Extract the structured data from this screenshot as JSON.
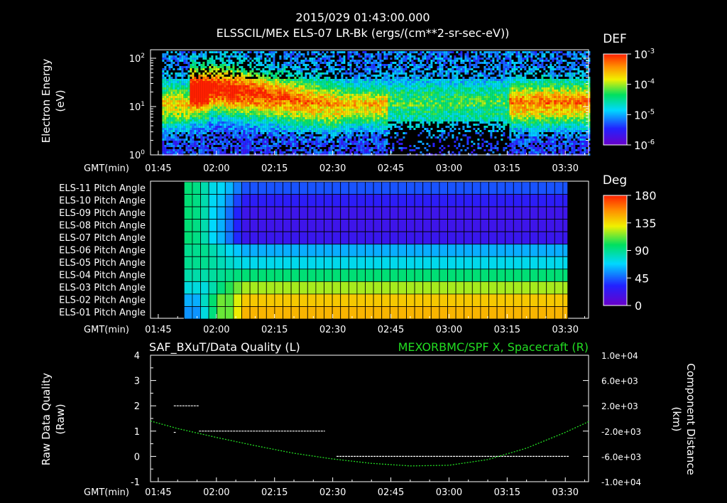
{
  "header": {
    "timestamp": "2015/029 01:43:00.000",
    "subtitle": "ELSSCIL/MEx ELS-07 LR-Bk  (ergs/(cm**2-sr-sec-eV))"
  },
  "time_axis": {
    "label": "GMT(min)",
    "ticks": [
      "01:45",
      "02:00",
      "02:15",
      "02:30",
      "02:45",
      "03:00",
      "03:15",
      "03:30"
    ],
    "range_min": [
      103,
      216
    ],
    "tick_minutes": [
      105,
      120,
      135,
      150,
      165,
      180,
      195,
      210
    ]
  },
  "chart_data": [
    {
      "type": "heatmap",
      "name": "energy-spectrogram",
      "ylabel": "Electron Energy",
      "yunit": "(eV)",
      "yscale": "log",
      "ylim": [
        1,
        150
      ],
      "y_ticks": [
        "10^0",
        "10^1",
        "10^2"
      ],
      "data_start_min": 106,
      "colorbar": {
        "title": "DEF",
        "ticks": [
          "10^-3",
          "10^-4",
          "10^-5",
          "10^-6"
        ]
      }
    },
    {
      "type": "heatmap",
      "name": "pitch-angle",
      "rows": [
        "ELS-11 Pitch Angle",
        "ELS-10 Pitch Angle",
        "ELS-09 Pitch Angle",
        "ELS-08 Pitch Angle",
        "ELS-07 Pitch Angle",
        "ELS-06 Pitch Angle",
        "ELS-05 Pitch Angle",
        "ELS-04 Pitch Angle",
        "ELS-03 Pitch Angle",
        "ELS-02 Pitch Angle",
        "ELS-01 Pitch Angle"
      ],
      "data_range_min": [
        108,
        211
      ],
      "colorbar": {
        "title": "Deg",
        "ticks": [
          "180",
          "135",
          "90",
          "45",
          "0"
        ],
        "range": [
          0,
          180
        ]
      }
    },
    {
      "type": "line",
      "name": "data-quality-and-position",
      "left_title": "SAF_BXuT/Data Quality (L)",
      "right_title": "MEXORBMC/SPF X, Spacecraft (R)",
      "left_color": "#ffffff",
      "right_color": "#22dd22",
      "ylabel_left": "Raw Data Quality",
      "ylabel_left_unit": "(Raw)",
      "ylim_left": [
        -1,
        4
      ],
      "y_ticks_left": [
        "4",
        "3",
        "2",
        "1",
        "0",
        "-1"
      ],
      "ylabel_right": "Component Distance",
      "ylabel_right_unit": "(km)",
      "ylim_right": [
        -10000,
        10000
      ],
      "y_ticks_right": [
        "1.0e+04",
        "6.0e+03",
        "2.0e+03",
        "-2.0e+03",
        "-6.0e+03",
        "-1.0e+04"
      ],
      "quality_segments": [
        {
          "t0": 109,
          "t1": 109.5,
          "value": 0.95
        },
        {
          "t0": 109,
          "t1": 115.5,
          "value": 2
        },
        {
          "t0": 115.5,
          "t1": 133,
          "value": 1
        },
        {
          "t0": 133,
          "t1": 148,
          "value": 1
        },
        {
          "t0": 151,
          "t1": 211,
          "value": 0
        }
      ],
      "position_series": {
        "x": [
          103,
          110,
          120,
          130,
          140,
          150,
          160,
          170,
          180,
          190,
          200,
          210,
          216
        ],
        "y": [
          -400,
          -1600,
          -3000,
          -4300,
          -5500,
          -6400,
          -7100,
          -7500,
          -7400,
          -6500,
          -4700,
          -2200,
          -500
        ]
      }
    }
  ]
}
